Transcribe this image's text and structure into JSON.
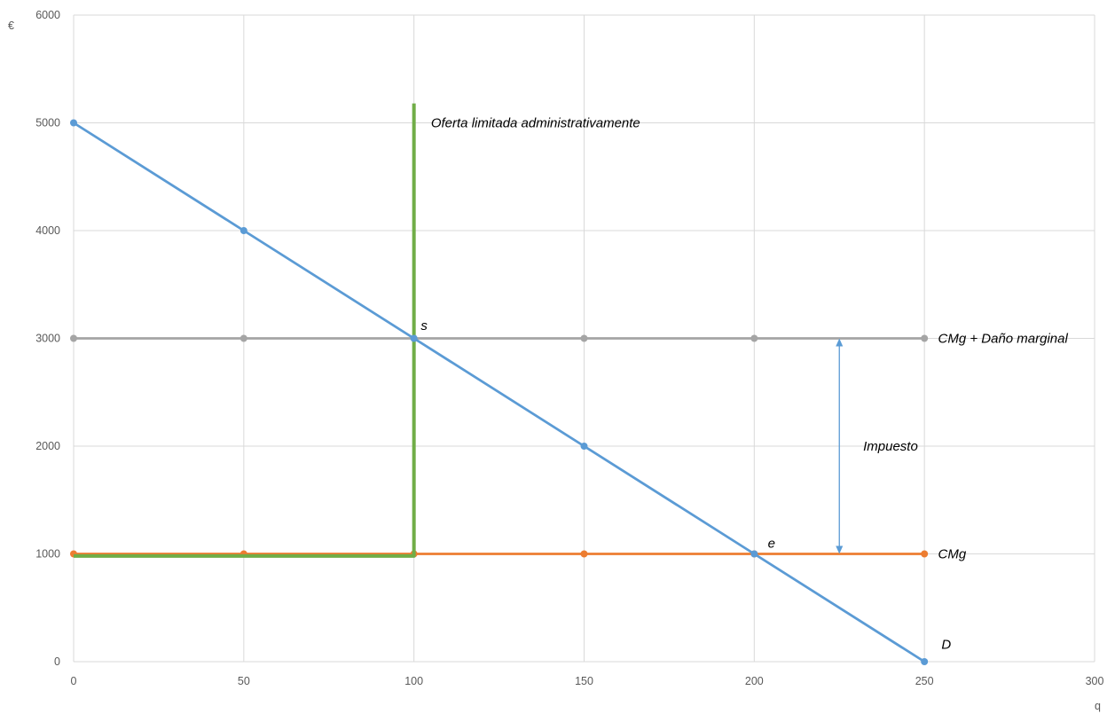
{
  "chart_data": {
    "type": "line",
    "title": "",
    "xlabel": "q",
    "ylabel": "€",
    "xlim": [
      0,
      300
    ],
    "ylim": [
      0,
      6000
    ],
    "x_ticks": [
      "0",
      "50",
      "100",
      "150",
      "200",
      "250",
      "300"
    ],
    "y_ticks": [
      "0",
      "1000",
      "2000",
      "3000",
      "4000",
      "5000",
      "6000"
    ],
    "x_tick_values": [
      0,
      50,
      100,
      150,
      200,
      250,
      300
    ],
    "y_tick_values": [
      0,
      1000,
      2000,
      3000,
      4000,
      5000,
      6000
    ],
    "grid": true,
    "series": [
      {
        "key": "demand",
        "color": "#5b9bd5",
        "x": [
          0,
          50,
          100,
          150,
          200,
          250
        ],
        "y": [
          5000,
          4000,
          3000,
          2000,
          1000,
          0
        ],
        "markers": true
      },
      {
        "key": "cmg_dano",
        "color": "#a5a5a5",
        "x": [
          0,
          50,
          100,
          150,
          200,
          250
        ],
        "y": [
          3000,
          3000,
          3000,
          3000,
          3000,
          3000
        ],
        "markers": true
      },
      {
        "key": "cmg",
        "color": "#ed7d31",
        "x": [
          0,
          50,
          100,
          150,
          200,
          250
        ],
        "y": [
          1000,
          1000,
          1000,
          1000,
          1000,
          1000
        ],
        "markers": true
      },
      {
        "key": "supply_limited",
        "color": "#70ad47",
        "x": [
          0,
          100,
          100
        ],
        "y": [
          980,
          980,
          5180
        ],
        "markers": false
      }
    ],
    "annotations": [
      {
        "key": "oferta",
        "text": "Oferta limitada administrativamente",
        "x": 105,
        "y": 5000
      },
      {
        "key": "cmg_dano_label",
        "text": "CMg + Daño marginal",
        "x": 254,
        "y": 3000
      },
      {
        "key": "cmg_label",
        "text": "CMg",
        "x": 254,
        "y": 1000
      },
      {
        "key": "impuesto",
        "text": "Impuesto",
        "x": 232,
        "y": 2000
      },
      {
        "key": "s",
        "text": "s",
        "x": 102,
        "y": 3120
      },
      {
        "key": "e",
        "text": "e",
        "x": 204,
        "y": 1100
      },
      {
        "key": "d",
        "text": "D",
        "x": 255,
        "y": 160
      }
    ],
    "arrow": {
      "x": 225,
      "y_from": 1000,
      "y_to": 3000,
      "color": "#5b9bd5"
    }
  }
}
